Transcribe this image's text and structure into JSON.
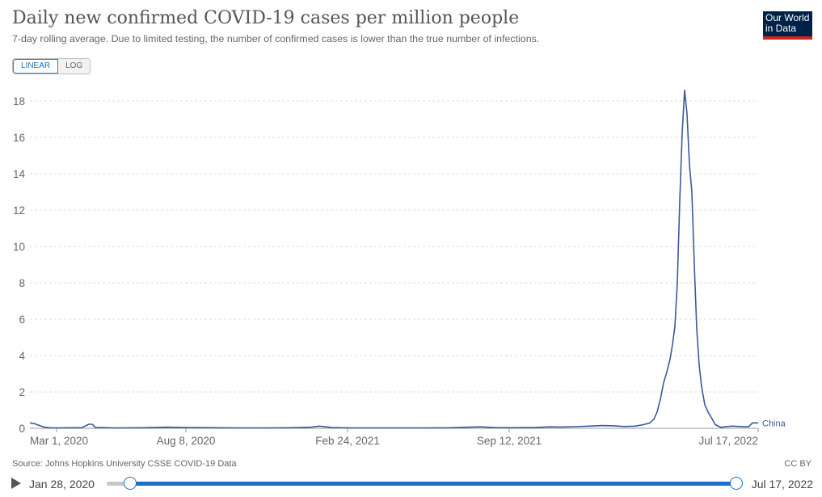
{
  "header": {
    "title": "Daily new confirmed COVID-19 cases per million people",
    "subtitle": "7-day rolling average. Due to limited testing, the number of confirmed cases is lower than the true number of infections."
  },
  "logo": {
    "line1": "Our World",
    "line2": "in Data"
  },
  "scale_toggle": {
    "linear_label": "LINEAR",
    "log_label": "LOG",
    "selected": "LINEAR"
  },
  "footer": {
    "source": "Source: Johns Hopkins University CSSE COVID-19 Data",
    "license": "CC BY"
  },
  "timeline": {
    "start_label": "Jan 28, 2020",
    "end_label": "Jul 17, 2022",
    "range_start": 0,
    "range_end": 1
  },
  "colors": {
    "series": "#3c5a99",
    "grid": "#dddddd",
    "accent": "#1a6fc7",
    "logo_bg": "#002147",
    "logo_stripe": "#ce261e"
  },
  "chart_data": {
    "type": "line",
    "title": "Daily new confirmed COVID-19 cases per million people",
    "xlabel": "",
    "ylabel": "",
    "ylim": [
      0,
      18
    ],
    "xlim": [
      "2020-01-28",
      "2022-07-17"
    ],
    "yticks": [
      0,
      2,
      4,
      6,
      8,
      10,
      12,
      14,
      16,
      18
    ],
    "xticks": [
      {
        "date": "2020-03-01",
        "label": "Mar 1, 2020"
      },
      {
        "date": "2020-08-08",
        "label": "Aug 8, 2020"
      },
      {
        "date": "2021-02-24",
        "label": "Feb 24, 2021"
      },
      {
        "date": "2021-09-12",
        "label": "Sep 12, 2021"
      },
      {
        "date": "2022-07-17",
        "label": "Jul 17, 2022"
      }
    ],
    "grid": true,
    "series": [
      {
        "name": "China",
        "x": [
          "2020-01-28",
          "2020-02-03",
          "2020-02-09",
          "2020-02-15",
          "2020-02-21",
          "2020-03-01",
          "2020-03-15",
          "2020-04-01",
          "2020-04-10",
          "2020-04-14",
          "2020-04-18",
          "2020-04-24",
          "2020-05-15",
          "2020-06-15",
          "2020-07-15",
          "2020-08-10",
          "2020-09-15",
          "2020-10-15",
          "2020-11-15",
          "2020-12-15",
          "2021-01-10",
          "2021-01-20",
          "2021-02-05",
          "2021-03-01",
          "2021-04-01",
          "2021-05-01",
          "2021-06-01",
          "2021-07-01",
          "2021-07-25",
          "2021-08-08",
          "2021-08-25",
          "2021-09-15",
          "2021-10-15",
          "2021-11-01",
          "2021-11-15",
          "2021-12-01",
          "2021-12-20",
          "2022-01-05",
          "2022-01-20",
          "2022-02-01",
          "2022-02-15",
          "2022-02-25",
          "2022-03-05",
          "2022-03-10",
          "2022-03-14",
          "2022-03-18",
          "2022-03-22",
          "2022-03-26",
          "2022-03-30",
          "2022-04-02",
          "2022-04-05",
          "2022-04-08",
          "2022-04-11",
          "2022-04-14",
          "2022-04-17",
          "2022-04-20",
          "2022-04-23",
          "2022-04-26",
          "2022-04-29",
          "2022-05-02",
          "2022-05-05",
          "2022-05-08",
          "2022-05-12",
          "2022-05-16",
          "2022-05-20",
          "2022-05-25",
          "2022-06-01",
          "2022-06-08",
          "2022-06-15",
          "2022-06-25",
          "2022-07-05",
          "2022-07-10",
          "2022-07-17"
        ],
        "y": [
          0.3,
          0.25,
          0.15,
          0.06,
          0.03,
          0.02,
          0.03,
          0.03,
          0.22,
          0.22,
          0.05,
          0.04,
          0.02,
          0.03,
          0.06,
          0.04,
          0.03,
          0.02,
          0.02,
          0.03,
          0.06,
          0.12,
          0.04,
          0.02,
          0.02,
          0.02,
          0.02,
          0.03,
          0.06,
          0.08,
          0.04,
          0.03,
          0.05,
          0.08,
          0.07,
          0.09,
          0.12,
          0.15,
          0.14,
          0.1,
          0.12,
          0.2,
          0.3,
          0.5,
          0.9,
          1.6,
          2.5,
          3.1,
          3.8,
          4.6,
          5.6,
          8.0,
          12.5,
          16.2,
          18.6,
          17.3,
          14.5,
          13.0,
          9.0,
          5.5,
          3.5,
          2.3,
          1.3,
          0.9,
          0.6,
          0.2,
          0.05,
          0.1,
          0.12,
          0.1,
          0.08,
          0.3,
          0.3
        ]
      }
    ]
  }
}
